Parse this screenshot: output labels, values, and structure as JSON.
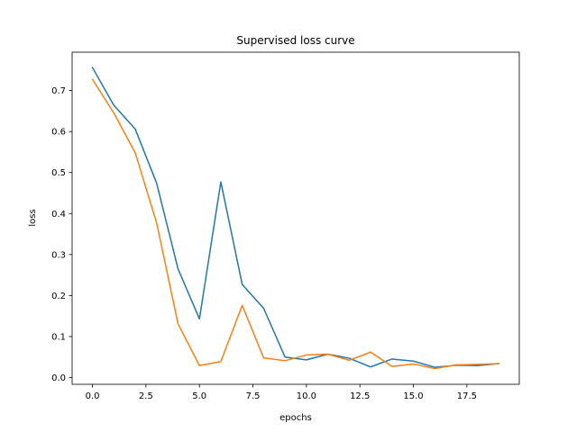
{
  "chart_data": {
    "type": "line",
    "title": "Supervised loss curve",
    "xlabel": "epochs",
    "ylabel": "loss",
    "xlim": [
      -0.95,
      19.95
    ],
    "ylim": [
      -0.0165,
      0.7935
    ],
    "xticks": [
      0.0,
      2.5,
      5.0,
      7.5,
      10.0,
      12.5,
      15.0,
      17.5
    ],
    "xtick_labels": [
      "0.0",
      "2.5",
      "5.0",
      "7.5",
      "10.0",
      "12.5",
      "15.0",
      "17.5"
    ],
    "yticks": [
      0.0,
      0.1,
      0.2,
      0.3,
      0.4,
      0.5,
      0.6,
      0.7
    ],
    "ytick_labels": [
      "0.0",
      "0.1",
      "0.2",
      "0.3",
      "0.4",
      "0.5",
      "0.6",
      "0.7"
    ],
    "grid": false,
    "legend": "none",
    "x": [
      0,
      1,
      2,
      3,
      4,
      5,
      6,
      7,
      8,
      9,
      10,
      11,
      12,
      13,
      14,
      15,
      16,
      17,
      18,
      19
    ],
    "series": [
      {
        "color": "#1f77b4",
        "values": [
          0.756,
          0.664,
          0.606,
          0.474,
          0.265,
          0.143,
          0.477,
          0.227,
          0.169,
          0.05,
          0.043,
          0.057,
          0.047,
          0.026,
          0.045,
          0.04,
          0.025,
          0.03,
          0.029,
          0.034
        ]
      },
      {
        "color": "#ff7f0e",
        "values": [
          0.727,
          0.645,
          0.548,
          0.377,
          0.131,
          0.029,
          0.039,
          0.176,
          0.048,
          0.041,
          0.055,
          0.057,
          0.042,
          0.062,
          0.027,
          0.033,
          0.022,
          0.031,
          0.032,
          0.034
        ]
      }
    ]
  }
}
